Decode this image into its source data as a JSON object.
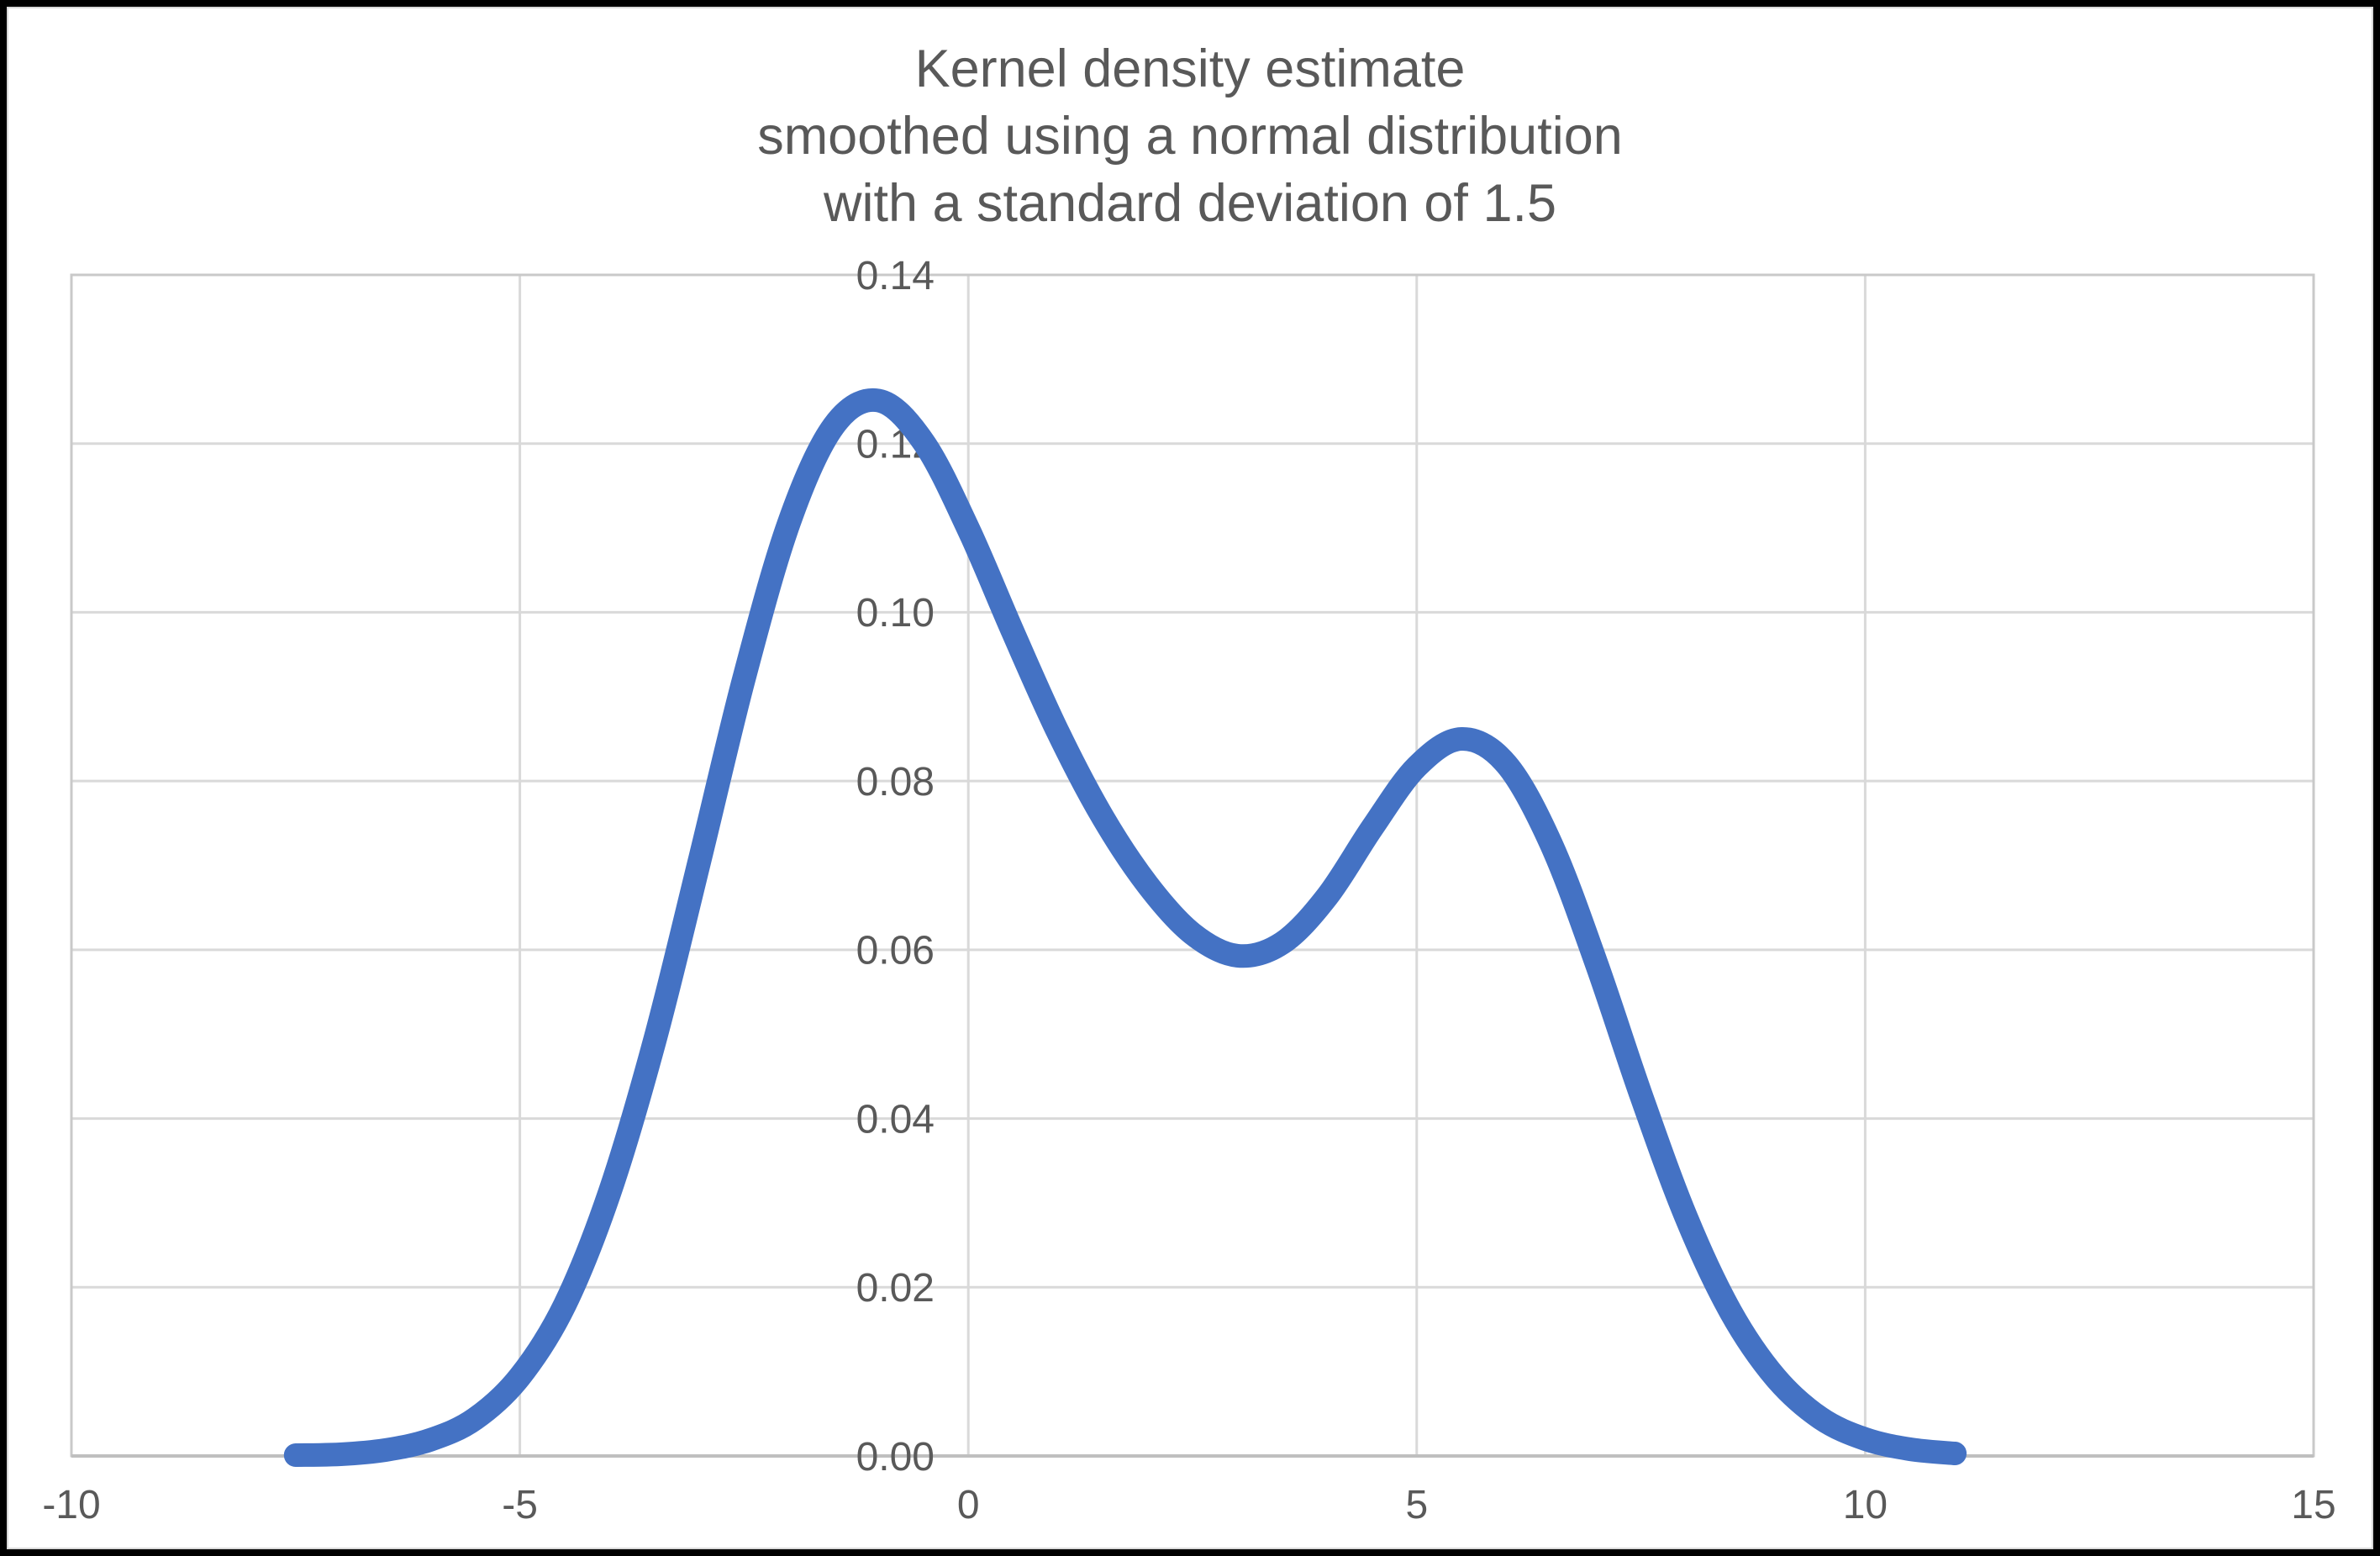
{
  "title": {
    "line1": "Kernel density estimate",
    "line2": "smoothed using a normal distribution",
    "line3": "with a standard deviation of 1.5",
    "color": "#595959"
  },
  "chart_data": {
    "type": "line",
    "title": "Kernel density estimate smoothed using a normal distribution with a standard deviation of 1.5",
    "xlabel": "",
    "ylabel": "",
    "xlim": [
      -10,
      15
    ],
    "ylim": [
      0,
      0.14
    ],
    "x_ticks": [
      -10,
      -5,
      0,
      5,
      10,
      15
    ],
    "x_tick_labels": [
      "-10",
      "-5",
      "0",
      "5",
      "10",
      "15"
    ],
    "y_ticks": [
      0,
      0.02,
      0.04,
      0.06,
      0.08,
      0.1,
      0.12,
      0.14
    ],
    "y_tick_labels": [
      "0.00",
      "0.02",
      "0.04",
      "0.06",
      "0.08",
      "0.10",
      "0.12",
      "0.14"
    ],
    "grid": true,
    "legend_position": "none",
    "series": [
      {
        "name": "Kernel density estimate",
        "color": "#4472C4",
        "stroke_width": 28,
        "x": [
          -7.5,
          -7,
          -6.5,
          -6,
          -5.5,
          -5,
          -4.5,
          -4,
          -3.5,
          -3,
          -2.5,
          -2,
          -1.5,
          -1,
          -0.5,
          0,
          0.5,
          1,
          1.5,
          2,
          2.5,
          3,
          3.5,
          4,
          4.5,
          5,
          5.5,
          6,
          6.5,
          7,
          7.5,
          8,
          8.5,
          9,
          9.5,
          10,
          10.5,
          11
        ],
        "y": [
          0.0001,
          0.0002,
          0.0007,
          0.0019,
          0.0044,
          0.0094,
          0.0179,
          0.0312,
          0.0491,
          0.0704,
          0.0922,
          0.1106,
          0.1221,
          0.1251,
          0.1202,
          0.1099,
          0.0976,
          0.0858,
          0.0757,
          0.0677,
          0.0619,
          0.0593,
          0.0608,
          0.0663,
          0.0744,
          0.0817,
          0.085,
          0.082,
          0.0725,
          0.0585,
          0.0428,
          0.0284,
          0.0171,
          0.0093,
          0.0045,
          0.002,
          0.0008,
          0.0003
        ]
      }
    ]
  },
  "style": {
    "background": "#FFFFFF",
    "frame_color": "#000000",
    "gridline_color": "#D9D9D9",
    "plot_border_color": "#C9C9C9",
    "axis_line_color": "#BFBFBF",
    "chart_border_color": "#D9D9D9",
    "tick_label_color": "#595959",
    "tick_font_size": 48
  }
}
